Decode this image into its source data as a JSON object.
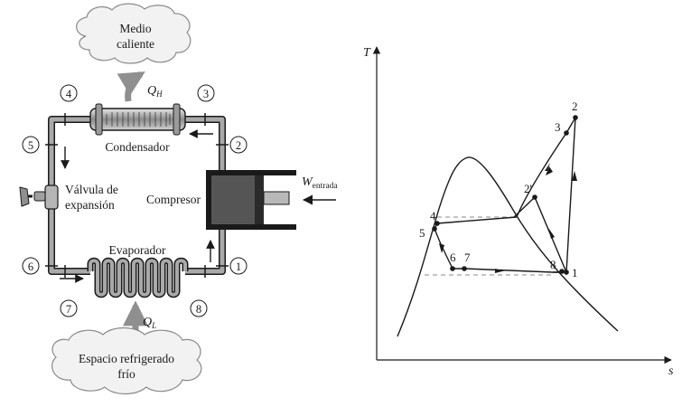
{
  "cycle_schematic": {
    "hot_medium": [
      "Medio",
      "caliente"
    ],
    "cold_space": [
      "Espacio refrigerado",
      "frío"
    ],
    "condenser_label": "Condensador",
    "evaporator_label": "Evaporador",
    "compressor_label": "Compresor",
    "valve_label": [
      "Válvula de",
      "expansión"
    ],
    "heat_out": {
      "symbol": "Q",
      "subscript": "H"
    },
    "heat_in": {
      "symbol": "Q",
      "subscript": "L"
    },
    "work_in": {
      "symbol": "W",
      "subscript": "entrada"
    },
    "state_numbers": [
      "1",
      "2",
      "3",
      "4",
      "5",
      "6",
      "7",
      "8"
    ]
  },
  "ts_diagram": {
    "y_axis_label": "T",
    "x_axis_label": "s",
    "state_labels": [
      "1",
      "2",
      "3",
      "2'",
      "4",
      "5",
      "6",
      "7",
      "8"
    ]
  },
  "colors": {
    "pipe": "#a9a9a9",
    "outline": "#1a1a1a",
    "cylinder": "#555555",
    "cloud": "#f2f2f2",
    "cloud_stroke": "#8a8a8a"
  }
}
